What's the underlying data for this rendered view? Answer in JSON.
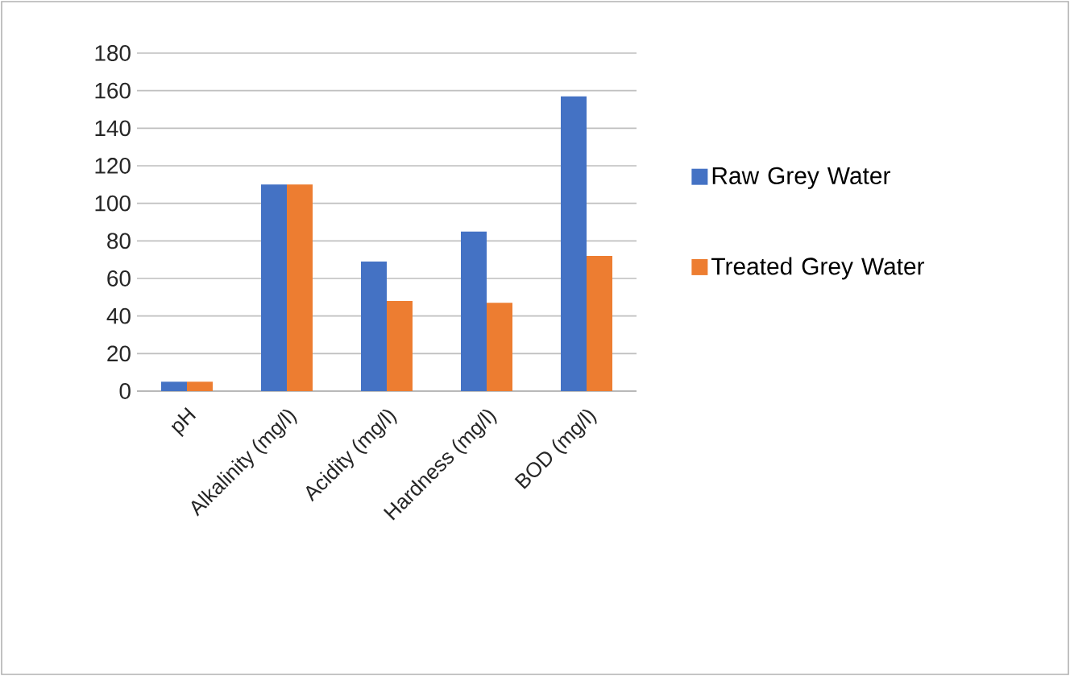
{
  "chart_data": {
    "type": "bar",
    "categories": [
      "pH",
      "Alkalinity (mg/l)",
      "Acidity (mg/l)",
      "Hardness (mg/l)",
      "BOD (mg/l)"
    ],
    "series": [
      {
        "name": "Raw Grey Water",
        "color": "#4472c4",
        "values": [
          5,
          110,
          69,
          85,
          157
        ]
      },
      {
        "name": "Treated Grey Water",
        "color": "#ed7d31",
        "values": [
          5,
          110,
          48,
          47,
          72
        ]
      }
    ],
    "ylim": [
      0,
      180
    ],
    "yticks": [
      0,
      20,
      40,
      60,
      80,
      100,
      120,
      140,
      160,
      180
    ],
    "grid": "y",
    "legend": "right"
  }
}
